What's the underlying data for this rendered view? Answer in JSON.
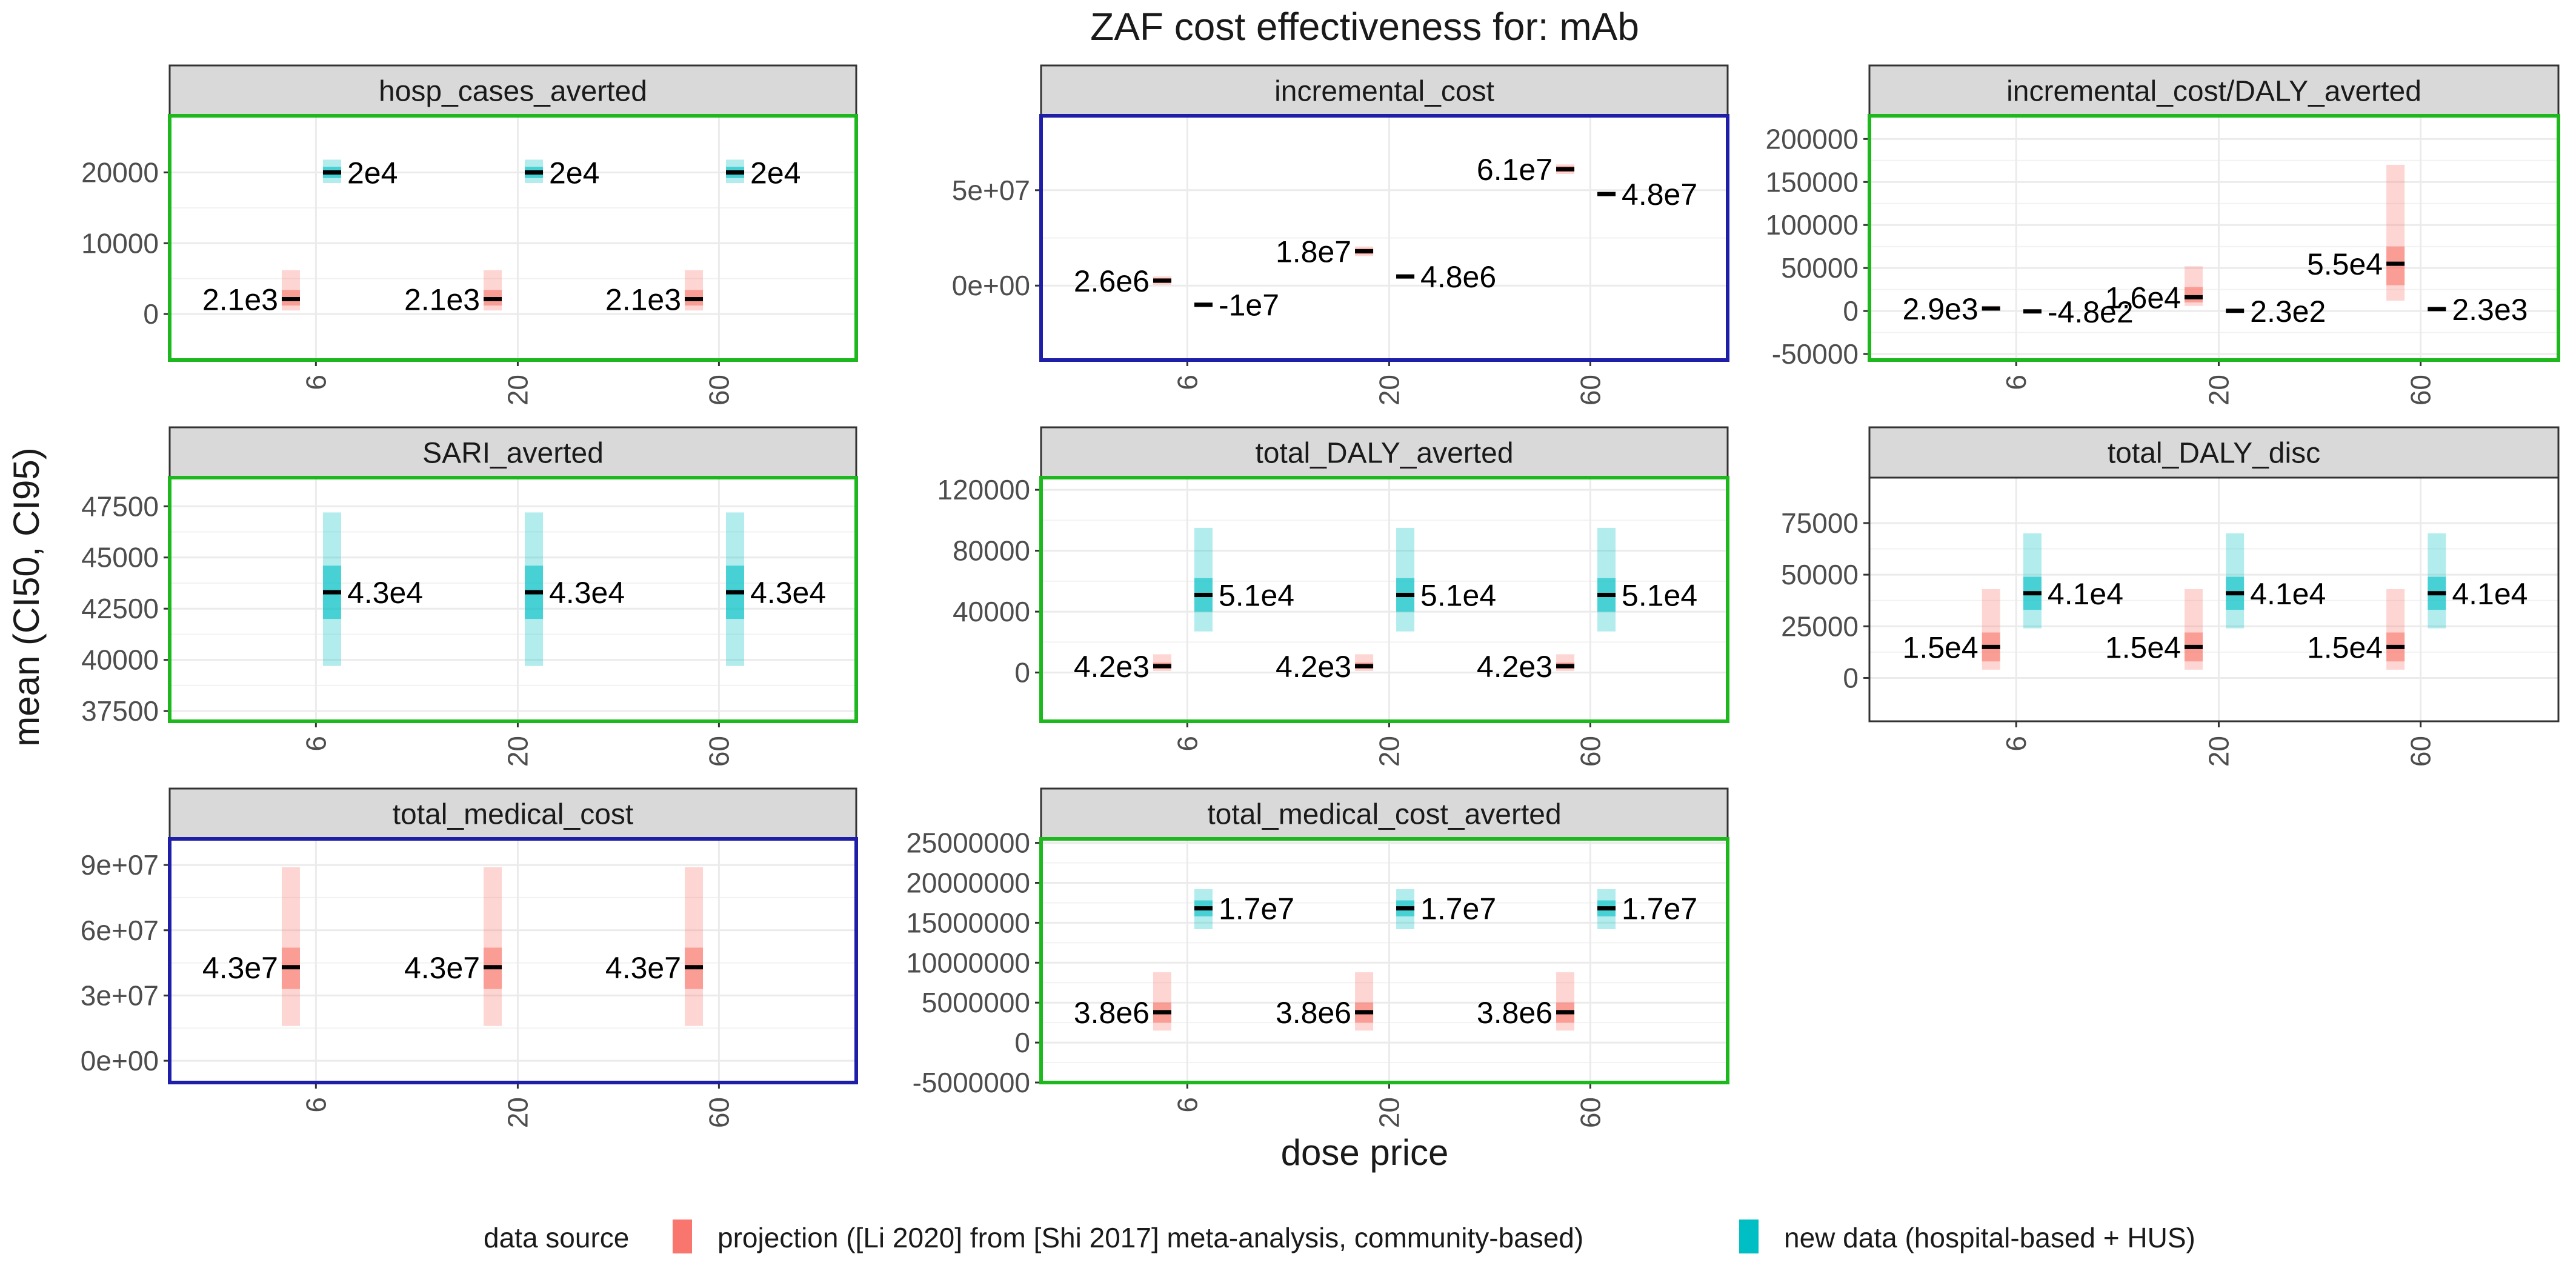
{
  "figure": {
    "title": "ZAF cost effectiveness for: mAb",
    "xlabel": "dose price",
    "ylabel": "mean (CI50, CI95)"
  },
  "legend": {
    "title": "data source",
    "items": [
      {
        "label": "projection ([Li 2020] from [Shi 2017] meta-analysis, community-based)",
        "color": "#F8766D"
      },
      {
        "label": "new data (hospital-based + HUS)",
        "color": "#00BFC4"
      }
    ]
  },
  "colors": {
    "projection": "#F8766D",
    "newdata": "#00BFC4",
    "frame_green": "#1DB81D",
    "frame_blue": "#1E1EA8",
    "strip_fill": "#D9D9D9",
    "grid": "#EBEBEB"
  },
  "chart_data": [
    {
      "type": "crossbar",
      "facet": "hosp_cases_averted",
      "frame": "green",
      "categories": [
        "6",
        "20",
        "60"
      ],
      "ylim": [
        -6500,
        28000
      ],
      "yticks": [
        0,
        10000,
        20000
      ],
      "ytick_labels": [
        "0",
        "10000",
        "20000"
      ],
      "series": [
        {
          "source": "projection",
          "points": [
            {
              "x": "6",
              "mean": 2100,
              "ci50": [
                1200,
                3400
              ],
              "ci95": [
                500,
                6200
              ],
              "label": "2.1e3"
            },
            {
              "x": "20",
              "mean": 2100,
              "ci50": [
                1200,
                3400
              ],
              "ci95": [
                500,
                6200
              ],
              "label": "2.1e3"
            },
            {
              "x": "60",
              "mean": 2100,
              "ci50": [
                1200,
                3400
              ],
              "ci95": [
                500,
                6200
              ],
              "label": "2.1e3"
            }
          ]
        },
        {
          "source": "newdata",
          "points": [
            {
              "x": "6",
              "mean": 20000,
              "ci50": [
                19200,
                20800
              ],
              "ci95": [
                18500,
                21800
              ],
              "label": "2e4"
            },
            {
              "x": "20",
              "mean": 20000,
              "ci50": [
                19200,
                20800
              ],
              "ci95": [
                18500,
                21800
              ],
              "label": "2e4"
            },
            {
              "x": "60",
              "mean": 20000,
              "ci50": [
                19200,
                20800
              ],
              "ci95": [
                18500,
                21800
              ],
              "label": "2e4"
            }
          ]
        }
      ]
    },
    {
      "type": "crossbar",
      "facet": "incremental_cost",
      "frame": "blue",
      "categories": [
        "6",
        "20",
        "60"
      ],
      "ylim": [
        -39000000,
        89000000
      ],
      "yticks": [
        0,
        50000000
      ],
      "ytick_labels": [
        "0e+00",
        "5e+07"
      ],
      "series": [
        {
          "source": "projection",
          "points": [
            {
              "x": "6",
              "mean": 2600000,
              "ci50": [
                1300000,
                3900000
              ],
              "ci95": [
                400000,
                4800000
              ],
              "label": "2.6e6"
            },
            {
              "x": "20",
              "mean": 18000000,
              "ci50": [
                16500000,
                19500000
              ],
              "ci95": [
                15500000,
                20500000
              ],
              "label": "1.8e7"
            },
            {
              "x": "60",
              "mean": 61000000,
              "ci50": [
                59500000,
                62500000
              ],
              "ci95": [
                58500000,
                63500000
              ],
              "label": "6.1e7"
            }
          ]
        },
        {
          "source": "newdata",
          "points": [
            {
              "x": "6",
              "mean": -10000000,
              "ci50": [
                -10500000,
                -9500000
              ],
              "ci95": [
                -11000000,
                -9000000
              ],
              "label": "-1e7"
            },
            {
              "x": "20",
              "mean": 4800000,
              "ci50": [
                4300000,
                5300000
              ],
              "ci95": [
                3800000,
                5800000
              ],
              "label": "4.8e6"
            },
            {
              "x": "60",
              "mean": 48000000,
              "ci50": [
                47500000,
                48500000
              ],
              "ci95": [
                47000000,
                49000000
              ],
              "label": "4.8e7"
            }
          ]
        }
      ]
    },
    {
      "type": "crossbar",
      "facet": "incremental_cost/DALY_averted",
      "frame": "green",
      "categories": [
        "6",
        "20",
        "60"
      ],
      "ylim": [
        -57000,
        227000
      ],
      "yticks": [
        -50000,
        0,
        50000,
        100000,
        150000,
        200000
      ],
      "ytick_labels": [
        "-50000",
        "0",
        "50000",
        "100000",
        "150000",
        "200000"
      ],
      "series": [
        {
          "source": "projection",
          "points": [
            {
              "x": "6",
              "mean": 2900,
              "ci50": [
                2000,
                4000
              ],
              "ci95": [
                1000,
                6000
              ],
              "label": "2.9e3"
            },
            {
              "x": "20",
              "mean": 16000,
              "ci50": [
                10000,
                28000
              ],
              "ci95": [
                6000,
                52000
              ],
              "label": "1.6e4"
            },
            {
              "x": "60",
              "mean": 55000,
              "ci50": [
                30000,
                75000
              ],
              "ci95": [
                12000,
                170000
              ],
              "label": "5.5e4"
            }
          ]
        },
        {
          "source": "newdata",
          "points": [
            {
              "x": "6",
              "mean": -480,
              "ci50": [
                -1500,
                500
              ],
              "ci95": [
                -2500,
                1500
              ],
              "label": "-4.8e2"
            },
            {
              "x": "20",
              "mean": 230,
              "ci50": [
                -700,
                1200
              ],
              "ci95": [
                -1700,
                2200
              ],
              "label": "2.3e2"
            },
            {
              "x": "60",
              "mean": 2300,
              "ci50": [
                1300,
                3300
              ],
              "ci95": [
                300,
                4300
              ],
              "label": "2.3e3"
            }
          ]
        }
      ]
    },
    {
      "type": "crossbar",
      "facet": "SARI_averted",
      "frame": "green",
      "categories": [
        "6",
        "20",
        "60"
      ],
      "ylim": [
        37000,
        48900
      ],
      "yticks": [
        37500,
        40000,
        42500,
        45000,
        47500
      ],
      "ytick_labels": [
        "37500",
        "40000",
        "42500",
        "45000",
        "47500"
      ],
      "series": [
        {
          "source": "newdata",
          "points": [
            {
              "x": "6",
              "mean": 43300,
              "ci50": [
                42000,
                44600
              ],
              "ci95": [
                39700,
                47200
              ],
              "label": "4.3e4"
            },
            {
              "x": "20",
              "mean": 43300,
              "ci50": [
                42000,
                44600
              ],
              "ci95": [
                39700,
                47200
              ],
              "label": "4.3e4"
            },
            {
              "x": "60",
              "mean": 43300,
              "ci50": [
                42000,
                44600
              ],
              "ci95": [
                39700,
                47200
              ],
              "label": "4.3e4"
            }
          ]
        }
      ]
    },
    {
      "type": "crossbar",
      "facet": "total_DALY_averted",
      "frame": "green",
      "categories": [
        "6",
        "20",
        "60"
      ],
      "ylim": [
        -32000,
        128000
      ],
      "yticks": [
        0,
        40000,
        80000,
        120000
      ],
      "ytick_labels": [
        "0",
        "40000",
        "80000",
        "120000"
      ],
      "series": [
        {
          "source": "projection",
          "points": [
            {
              "x": "6",
              "mean": 4200,
              "ci50": [
                2500,
                6500
              ],
              "ci95": [
                1000,
                12000
              ],
              "label": "4.2e3"
            },
            {
              "x": "20",
              "mean": 4200,
              "ci50": [
                2500,
                6500
              ],
              "ci95": [
                1000,
                12000
              ],
              "label": "4.2e3"
            },
            {
              "x": "60",
              "mean": 4200,
              "ci50": [
                2500,
                6500
              ],
              "ci95": [
                1000,
                12000
              ],
              "label": "4.2e3"
            }
          ]
        },
        {
          "source": "newdata",
          "points": [
            {
              "x": "6",
              "mean": 51000,
              "ci50": [
                40000,
                62000
              ],
              "ci95": [
                27000,
                95000
              ],
              "label": "5.1e4"
            },
            {
              "x": "20",
              "mean": 51000,
              "ci50": [
                40000,
                62000
              ],
              "ci95": [
                27000,
                95000
              ],
              "label": "5.1e4"
            },
            {
              "x": "60",
              "mean": 51000,
              "ci50": [
                40000,
                62000
              ],
              "ci95": [
                27000,
                95000
              ],
              "label": "5.1e4"
            }
          ]
        }
      ]
    },
    {
      "type": "crossbar",
      "facet": "total_DALY_disc",
      "frame": "none",
      "categories": [
        "6",
        "20",
        "60"
      ],
      "ylim": [
        -21000,
        97000
      ],
      "yticks": [
        0,
        25000,
        50000,
        75000
      ],
      "ytick_labels": [
        "0",
        "25000",
        "50000",
        "75000"
      ],
      "series": [
        {
          "source": "projection",
          "points": [
            {
              "x": "6",
              "mean": 15000,
              "ci50": [
                8000,
                22000
              ],
              "ci95": [
                4000,
                43000
              ],
              "label": "1.5e4"
            },
            {
              "x": "20",
              "mean": 15000,
              "ci50": [
                8000,
                22000
              ],
              "ci95": [
                4000,
                43000
              ],
              "label": "1.5e4"
            },
            {
              "x": "60",
              "mean": 15000,
              "ci50": [
                8000,
                22000
              ],
              "ci95": [
                4000,
                43000
              ],
              "label": "1.5e4"
            }
          ]
        },
        {
          "source": "newdata",
          "points": [
            {
              "x": "6",
              "mean": 41000,
              "ci50": [
                33000,
                49000
              ],
              "ci95": [
                24000,
                70000
              ],
              "label": "4.1e4"
            },
            {
              "x": "20",
              "mean": 41000,
              "ci50": [
                33000,
                49000
              ],
              "ci95": [
                24000,
                70000
              ],
              "label": "4.1e4"
            },
            {
              "x": "60",
              "mean": 41000,
              "ci50": [
                33000,
                49000
              ],
              "ci95": [
                24000,
                70000
              ],
              "label": "4.1e4"
            }
          ]
        }
      ]
    },
    {
      "type": "crossbar",
      "facet": "total_medical_cost",
      "frame": "blue",
      "categories": [
        "6",
        "20",
        "60"
      ],
      "ylim": [
        -10000000,
        102000000
      ],
      "yticks": [
        0,
        30000000,
        60000000,
        90000000
      ],
      "ytick_labels": [
        "0e+00",
        "3e+07",
        "6e+07",
        "9e+07"
      ],
      "series": [
        {
          "source": "projection",
          "points": [
            {
              "x": "6",
              "mean": 43000000,
              "ci50": [
                33000000,
                52000000
              ],
              "ci95": [
                16000000,
                89000000
              ],
              "label": "4.3e7"
            },
            {
              "x": "20",
              "mean": 43000000,
              "ci50": [
                33000000,
                52000000
              ],
              "ci95": [
                16000000,
                89000000
              ],
              "label": "4.3e7"
            },
            {
              "x": "60",
              "mean": 43000000,
              "ci50": [
                33000000,
                52000000
              ],
              "ci95": [
                16000000,
                89000000
              ],
              "label": "4.3e7"
            }
          ]
        }
      ]
    },
    {
      "type": "crossbar",
      "facet": "total_medical_cost_averted",
      "frame": "green",
      "categories": [
        "6",
        "20",
        "60"
      ],
      "ylim": [
        -5000000,
        25500000
      ],
      "yticks": [
        -5000000,
        0,
        5000000,
        10000000,
        15000000,
        20000000,
        25000000
      ],
      "ytick_labels": [
        "-5000000",
        "0",
        "5000000",
        "10000000",
        "15000000",
        "20000000",
        "25000000"
      ],
      "series": [
        {
          "source": "projection",
          "points": [
            {
              "x": "6",
              "mean": 3800000,
              "ci50": [
                2500000,
                5000000
              ],
              "ci95": [
                1500000,
                8800000
              ],
              "label": "3.8e6"
            },
            {
              "x": "20",
              "mean": 3800000,
              "ci50": [
                2500000,
                5000000
              ],
              "ci95": [
                1500000,
                8800000
              ],
              "label": "3.8e6"
            },
            {
              "x": "60",
              "mean": 3800000,
              "ci50": [
                2500000,
                5000000
              ],
              "ci95": [
                1500000,
                8800000
              ],
              "label": "3.8e6"
            }
          ]
        },
        {
          "source": "newdata",
          "points": [
            {
              "x": "6",
              "mean": 16800000,
              "ci50": [
                15800000,
                17800000
              ],
              "ci95": [
                14200000,
                19200000
              ],
              "label": "1.7e7"
            },
            {
              "x": "20",
              "mean": 16800000,
              "ci50": [
                15800000,
                17800000
              ],
              "ci95": [
                14200000,
                19200000
              ],
              "label": "1.7e7"
            },
            {
              "x": "60",
              "mean": 16800000,
              "ci50": [
                15800000,
                17800000
              ],
              "ci95": [
                14200000,
                19200000
              ],
              "label": "1.7e7"
            }
          ]
        }
      ]
    }
  ]
}
